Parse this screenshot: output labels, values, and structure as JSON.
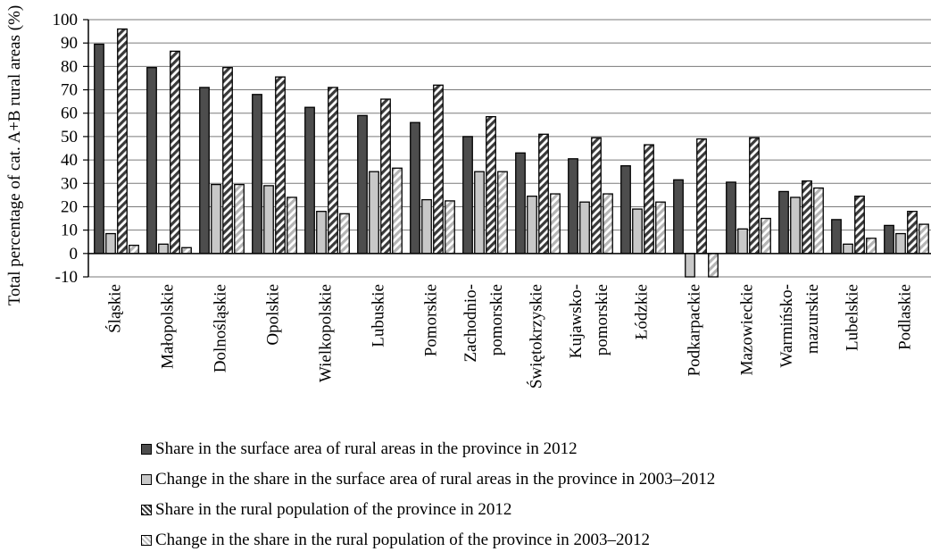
{
  "chart_data": {
    "type": "bar",
    "title": "",
    "xlabel": "",
    "ylabel": "Total percentage of cat. A+B rural areas (%)",
    "ylim": [
      -10,
      100
    ],
    "yticks": [
      -10,
      0,
      10,
      20,
      30,
      40,
      50,
      60,
      70,
      80,
      90,
      100
    ],
    "grid": true,
    "legend_position": "bottom",
    "categories": [
      [
        "Śląskie"
      ],
      [
        "Małopolskie"
      ],
      [
        "Dolnośląskie"
      ],
      [
        "Opolskie"
      ],
      [
        "Wielkopolskie"
      ],
      [
        "Lubuskie"
      ],
      [
        "Pomorskie"
      ],
      [
        "Zachodnio-",
        "pomorskie"
      ],
      [
        "Świętokrzyskie"
      ],
      [
        "Kujawsko-",
        "pomorskie"
      ],
      [
        "Łódzkie"
      ],
      [
        "Podkarpackie"
      ],
      [
        "Mazowieckie"
      ],
      [
        "Warmińsko-",
        "mazurskie"
      ],
      [
        "Lubelskie"
      ],
      [
        "Podlaskie"
      ]
    ],
    "series": [
      {
        "name": "Share in the surface area of rural areas in the province in 2012",
        "style": "dark",
        "color": "#4d4d4d",
        "values": [
          89.5,
          79.5,
          71,
          68,
          62.5,
          59,
          56,
          50,
          43,
          40.5,
          37.5,
          31.5,
          30.5,
          26.5,
          14.5,
          12
        ]
      },
      {
        "name": "Change in the share in the surface area of rural areas in the province in 2003–2012",
        "style": "light",
        "color": "#c8c8c8",
        "values": [
          8.5,
          4,
          29.5,
          29,
          18,
          35,
          23,
          35,
          24.5,
          22,
          19,
          -10,
          10.5,
          24,
          4,
          8.5
        ]
      },
      {
        "name": "Share in the rural population of the province in 2012",
        "style": "hatch-dark",
        "color": "#3a3a3a",
        "values": [
          96,
          86.5,
          79.5,
          75.5,
          71,
          66,
          72,
          58.5,
          51,
          49.5,
          46.5,
          49,
          49.5,
          31,
          24.5,
          18
        ]
      },
      {
        "name": "Change in the share in the rural population of the province in 2003–2012",
        "style": "hatch-light",
        "color": "#bdbdbd",
        "values": [
          3.5,
          2.5,
          29.5,
          24,
          17,
          36.5,
          22.5,
          35,
          25.5,
          25.5,
          22,
          -10,
          15,
          28,
          6.5,
          12.5
        ]
      }
    ]
  }
}
